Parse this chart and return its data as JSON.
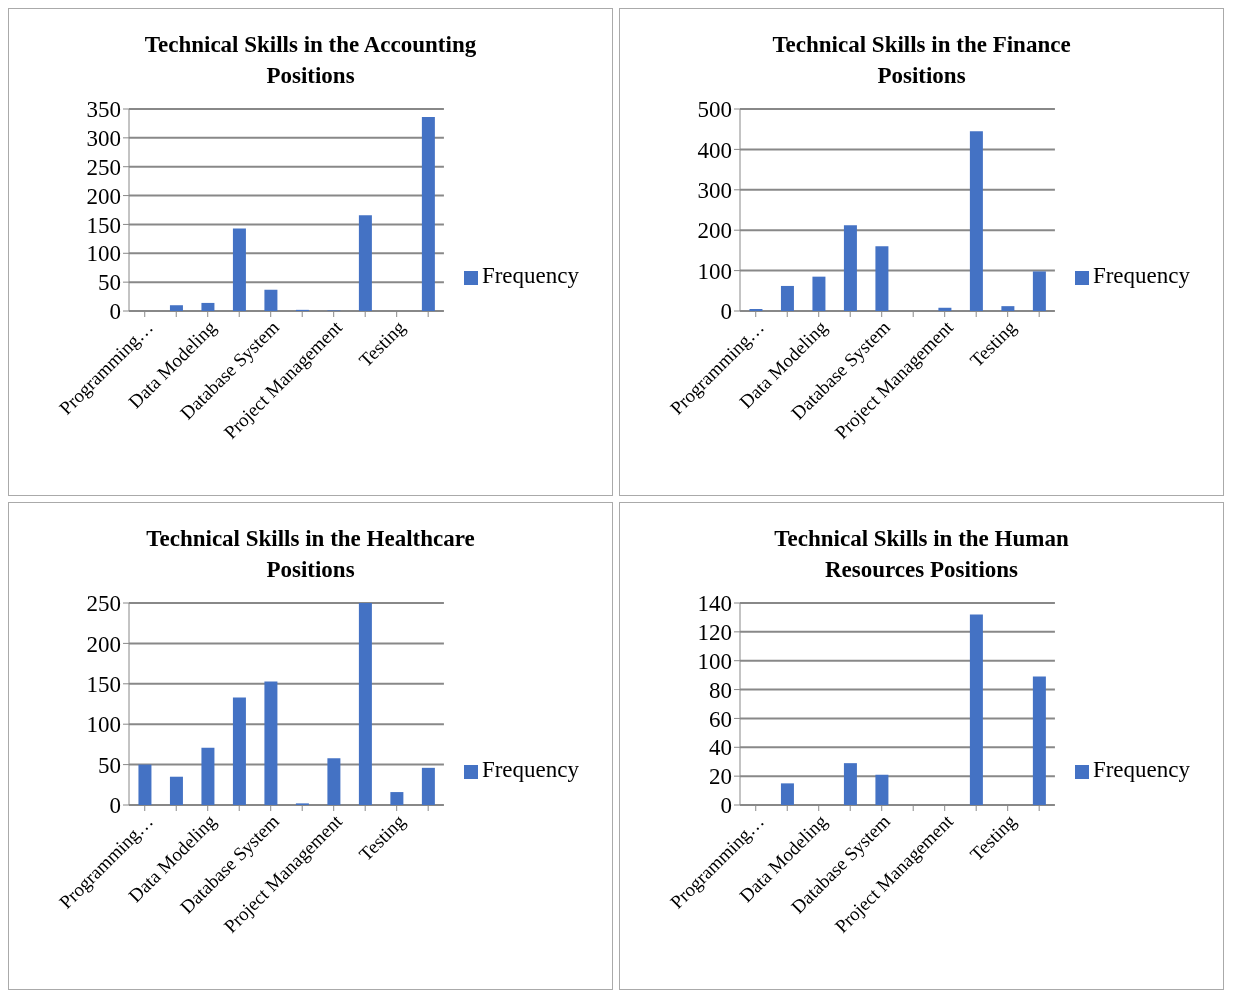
{
  "chart_data": [
    {
      "type": "bar",
      "title": "Technical Skills in the Accounting Positions",
      "categories": [
        "Programming…",
        null,
        "Data Modeling",
        null,
        "Database System",
        null,
        "Project Management",
        null,
        "Testing",
        null
      ],
      "series": [
        {
          "name": "Frequency",
          "color": "#4472c4",
          "values": [
            0,
            10,
            14,
            143,
            37,
            2,
            1,
            166,
            0,
            336
          ]
        }
      ],
      "ylim": [
        0,
        350
      ],
      "yticks": [
        0,
        50,
        100,
        150,
        200,
        250,
        300,
        350
      ],
      "grid": "y",
      "legend": "right"
    },
    {
      "type": "bar",
      "title": "Technical Skills in the Finance Positions",
      "categories": [
        "Programming…",
        null,
        "Data Modeling",
        null,
        "Database System",
        null,
        "Project Management",
        null,
        "Testing",
        null
      ],
      "series": [
        {
          "name": "Frequency",
          "color": "#4472c4",
          "values": [
            5,
            62,
            85,
            212,
            160,
            0,
            8,
            445,
            12,
            98
          ]
        }
      ],
      "ylim": [
        0,
        500
      ],
      "yticks": [
        0,
        100,
        200,
        300,
        400,
        500
      ],
      "grid": "y",
      "legend": "right"
    },
    {
      "type": "bar",
      "title": "Technical Skills in the Healthcare Positions",
      "categories": [
        "Programming…",
        null,
        "Data Modeling",
        null,
        "Database System",
        null,
        "Project Management",
        null,
        "Testing",
        null
      ],
      "series": [
        {
          "name": "Frequency",
          "color": "#4472c4",
          "values": [
            50,
            35,
            71,
            133,
            153,
            2,
            58,
            250,
            16,
            46
          ]
        }
      ],
      "ylim": [
        0,
        250
      ],
      "yticks": [
        0,
        50,
        100,
        150,
        200,
        250
      ],
      "grid": "y",
      "legend": "right"
    },
    {
      "type": "bar",
      "title": "Technical Skills in the Human Resources Positions",
      "categories": [
        "Programming…",
        null,
        "Data Modeling",
        null,
        "Database System",
        null,
        "Project Management",
        null,
        "Testing",
        null
      ],
      "series": [
        {
          "name": "Frequency",
          "color": "#4472c4",
          "values": [
            0,
            15,
            0,
            29,
            21,
            0,
            0,
            132,
            0,
            89
          ]
        }
      ],
      "ylim": [
        0,
        140
      ],
      "yticks": [
        0,
        20,
        40,
        60,
        80,
        100,
        120,
        140
      ],
      "grid": "y",
      "legend": "right"
    }
  ]
}
